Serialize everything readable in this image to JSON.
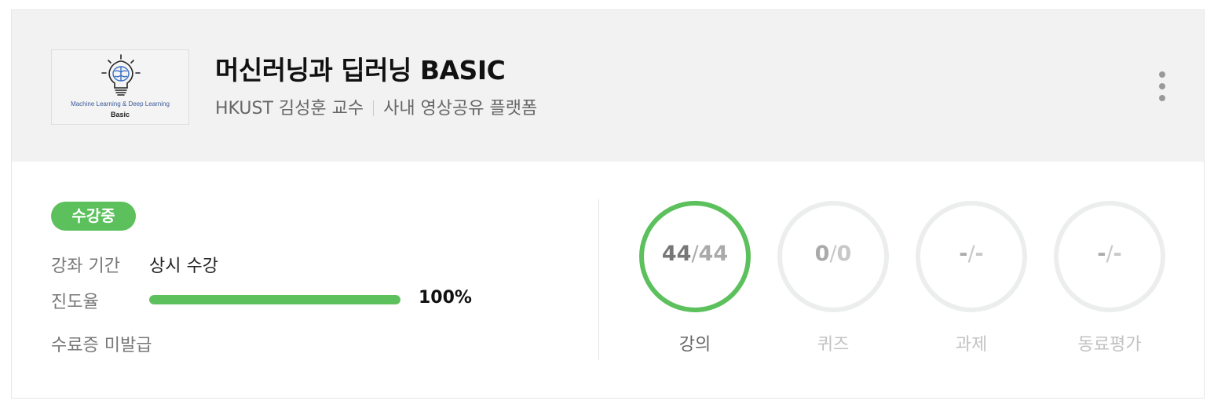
{
  "course": {
    "thumbnail_caption_line1": "Machine Learning & Deep Learning",
    "thumbnail_caption_line2": "Basic",
    "title": "머신러닝과 딥러닝 BASIC",
    "instructor": "HKUST 김성훈 교수",
    "platform": "사내 영상공유 플랫폼",
    "more_icon": "more-vertical-icon"
  },
  "enrollment": {
    "status": "수강중",
    "period_label": "강좌 기간",
    "period_value": "상시 수강",
    "progress_label": "진도율",
    "progress_percent": 100,
    "progress_text": "100%",
    "certificate_text": "수료증 미발급"
  },
  "colors": {
    "accent_green": "#5cc15d",
    "ring_inactive": "#eceeee"
  },
  "stats": [
    {
      "label": "강의",
      "done": "44",
      "total": "44",
      "active": true
    },
    {
      "label": "퀴즈",
      "done": "0",
      "total": "0",
      "active": false
    },
    {
      "label": "과제",
      "done": "-",
      "total": "-",
      "active": false
    },
    {
      "label": "동료평가",
      "done": "-",
      "total": "-",
      "active": false
    }
  ]
}
